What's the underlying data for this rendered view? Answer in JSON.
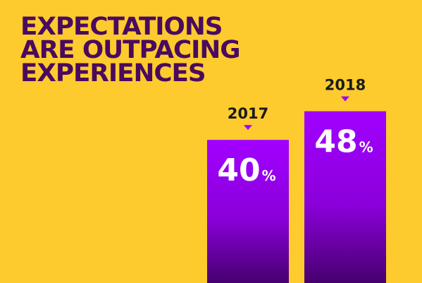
{
  "headline": {
    "lines": [
      "EXPECTATIONS",
      "ARE OUTPACING",
      "EXPERIENCES"
    ]
  },
  "colors": {
    "background": "#fdcb2e",
    "headline": "#4a0a5e",
    "bar_top": "#a100ff",
    "bar_bottom": "#46006e",
    "marker": "#a100ff",
    "year_label": "#1a1a1a",
    "value_text": "#ffffff"
  },
  "chart_data": {
    "type": "bar",
    "title": "EXPECTATIONS ARE OUTPACING EXPERIENCES",
    "categories": [
      "2017",
      "2018"
    ],
    "values": [
      40,
      48
    ],
    "unit": "%",
    "xlabel": "",
    "ylabel": "",
    "grid": false,
    "legend": "none"
  }
}
